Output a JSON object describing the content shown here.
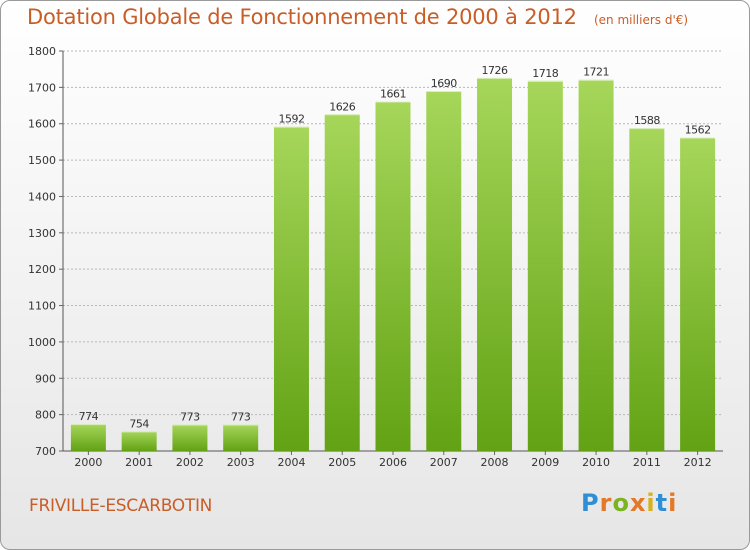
{
  "title": "Dotation Globale de Fonctionnement de 2000 à 2012",
  "subtitle": "(en milliers d'€)",
  "commune": "FRIVILLE-ESCARBOTIN",
  "logo": {
    "letters": [
      "P",
      "r",
      "o",
      "x",
      "i",
      "t",
      "i"
    ],
    "colors": [
      "#2f8fd6",
      "#e37826",
      "#7ab41f",
      "#e37826",
      "#d8b21c",
      "#2f8fd6",
      "#e37826"
    ]
  },
  "colors": {
    "bar_light": "#a6d65a",
    "bar_dark": "#62a214",
    "text_accent": "#c95d27",
    "grid": "#b8b8b8"
  },
  "chart_data": {
    "type": "bar",
    "title": "Dotation Globale de Fonctionnement de 2000 à 2012",
    "subtitle": "(en milliers d'€)",
    "categories": [
      "2000",
      "2001",
      "2002",
      "2003",
      "2004",
      "2005",
      "2006",
      "2007",
      "2008",
      "2009",
      "2010",
      "2011",
      "2012"
    ],
    "values": [
      774,
      754,
      773,
      773,
      1592,
      1626,
      1661,
      1690,
      1726,
      1718,
      1721,
      1588,
      1562
    ],
    "ylim": [
      700,
      1800
    ],
    "yticks": [
      700,
      800,
      900,
      1000,
      1100,
      1200,
      1300,
      1400,
      1500,
      1600,
      1700,
      1800
    ],
    "grid": true,
    "data_labels": true,
    "legend": "none"
  }
}
